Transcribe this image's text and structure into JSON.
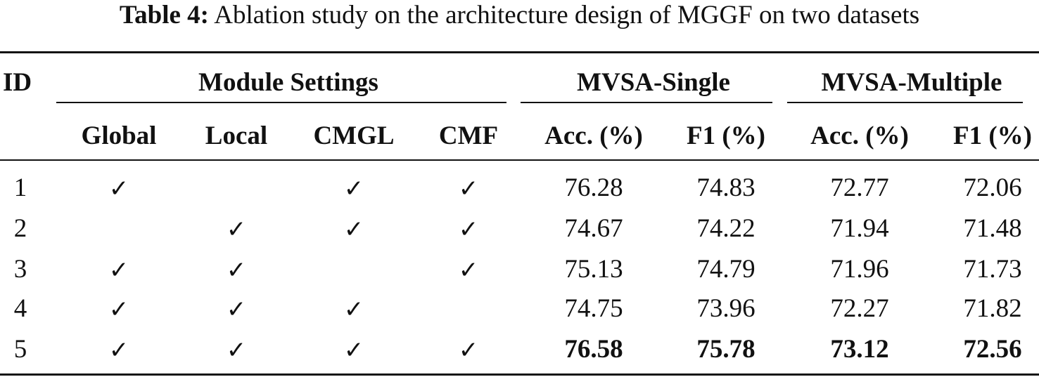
{
  "caption": {
    "label": "Table 4:",
    "text": "Ablation study on the architecture design of MGGF on two datasets"
  },
  "header": {
    "id": "ID",
    "groups": {
      "module_settings": "Module Settings",
      "mvsa_single": "MVSA-Single",
      "mvsa_multiple": "MVSA-Multiple"
    },
    "columns": {
      "global": "Global",
      "local": "Local",
      "cmgl": "CMGL",
      "cmf": "CMF",
      "single_acc": "Acc. (%)",
      "single_f1": "F1 (%)",
      "multiple_acc": "Acc. (%)",
      "multiple_f1": "F1 (%)"
    }
  },
  "check_glyph": "✓",
  "rows": [
    {
      "id": "1",
      "global": true,
      "local": false,
      "cmgl": true,
      "cmf": true,
      "single_acc": "76.28",
      "single_f1": "74.83",
      "multiple_acc": "72.77",
      "multiple_f1": "72.06",
      "bold": false
    },
    {
      "id": "2",
      "global": false,
      "local": true,
      "cmgl": true,
      "cmf": true,
      "single_acc": "74.67",
      "single_f1": "74.22",
      "multiple_acc": "71.94",
      "multiple_f1": "71.48",
      "bold": false
    },
    {
      "id": "3",
      "global": true,
      "local": true,
      "cmgl": false,
      "cmf": true,
      "single_acc": "75.13",
      "single_f1": "74.79",
      "multiple_acc": "71.96",
      "multiple_f1": "71.73",
      "bold": false
    },
    {
      "id": "4",
      "global": true,
      "local": true,
      "cmgl": true,
      "cmf": false,
      "single_acc": "74.75",
      "single_f1": "73.96",
      "multiple_acc": "72.27",
      "multiple_f1": "71.82",
      "bold": false
    },
    {
      "id": "5",
      "global": true,
      "local": true,
      "cmgl": true,
      "cmf": true,
      "single_acc": "76.58",
      "single_f1": "75.78",
      "multiple_acc": "73.12",
      "multiple_f1": "72.56",
      "bold": true
    }
  ]
}
